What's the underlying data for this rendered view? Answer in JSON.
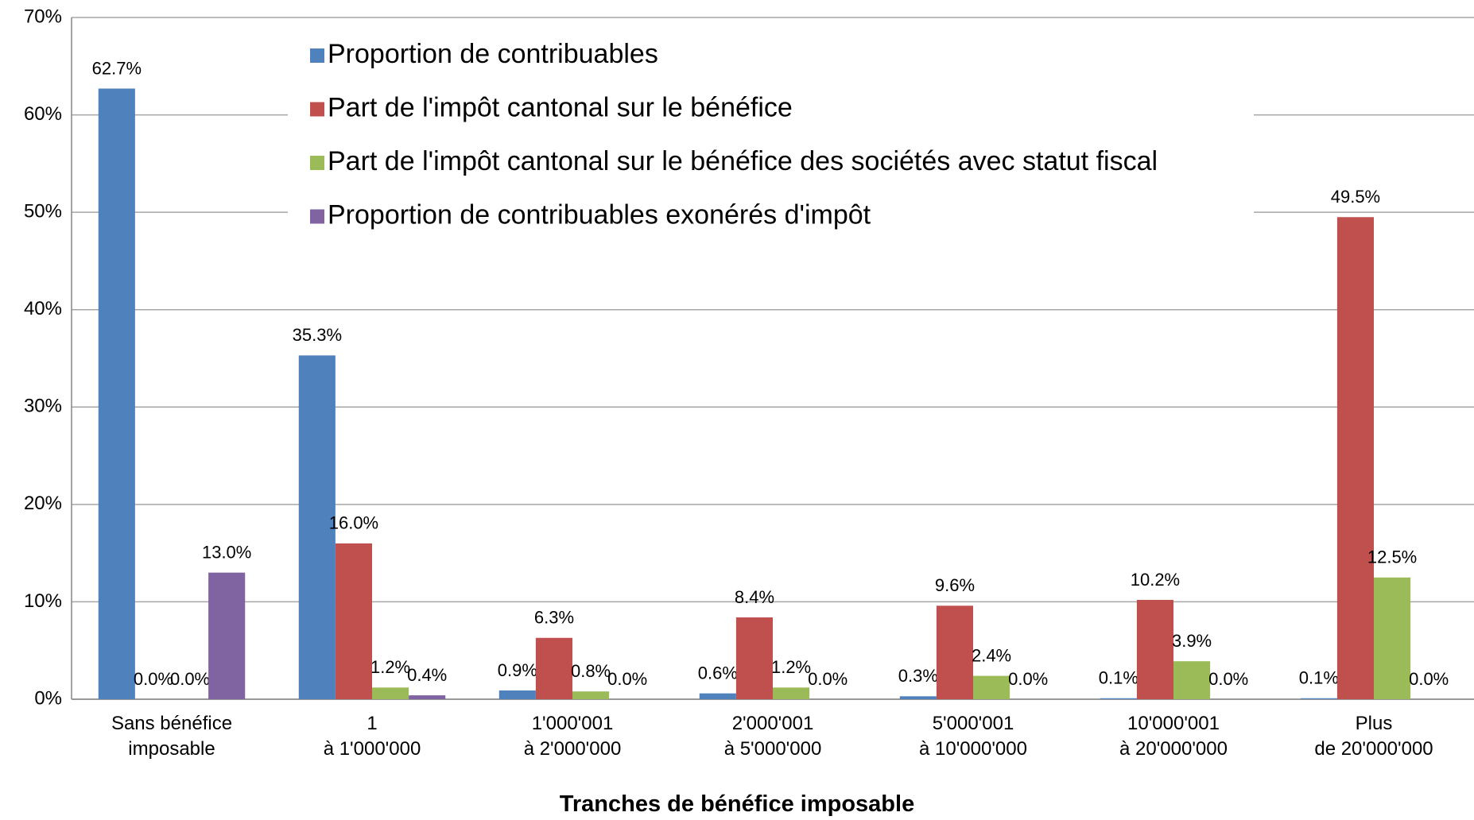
{
  "chart_data": {
    "type": "bar",
    "x_label": "Tranches de bénéfice imposable",
    "categories": [
      "Sans bénéfice\nimposable",
      "1\nà 1'000'000",
      "1'000'001\nà 2'000'000",
      "2'000'001\nà 5'000'000",
      "5'000'001\nà 10'000'000",
      "10'000'001\nà 20'000'000",
      "Plus\nde 20'000'000"
    ],
    "series": [
      {
        "name": "Proportion de contribuables",
        "color": "#4f81bd",
        "values": [
          62.7,
          35.3,
          0.9,
          0.6,
          0.3,
          0.1,
          0.1
        ],
        "value_labels": [
          "62.7%",
          "35.3%",
          "0.9%",
          "0.6%",
          "0.3%",
          "0.1%",
          "0.1%"
        ]
      },
      {
        "name": "Part de l'impôt cantonal sur le bénéfice",
        "color": "#c0504d",
        "values": [
          0.0,
          16.0,
          6.3,
          8.4,
          9.6,
          10.2,
          49.5
        ],
        "value_labels": [
          "0.0%",
          "16.0%",
          "6.3%",
          "8.4%",
          "9.6%",
          "10.2%",
          "49.5%"
        ]
      },
      {
        "name": "Part de l'impôt cantonal sur le bénéfice des sociétés avec statut fiscal",
        "color": "#9bbb59",
        "values": [
          0.0,
          1.2,
          0.8,
          1.2,
          2.4,
          3.9,
          12.5
        ],
        "value_labels": [
          "0.0%",
          "1.2%",
          "0.8%",
          "1.2%",
          "2.4%",
          "3.9%",
          "12.5%"
        ]
      },
      {
        "name": "Proportion de contribuables exonérés d'impôt",
        "color": "#8064a2",
        "values": [
          13.0,
          0.4,
          0.0,
          0.0,
          0.0,
          0.0,
          0.0
        ],
        "value_labels": [
          "13.0%",
          "0.4%",
          "0.0%",
          "0.0%",
          "0.0%",
          "0.0%",
          "0.0%"
        ]
      }
    ],
    "ylim": [
      0,
      70
    ],
    "yticks": [
      {
        "value": 0,
        "label": "0%"
      },
      {
        "value": 10,
        "label": "10%"
      },
      {
        "value": 20,
        "label": "20%"
      },
      {
        "value": 30,
        "label": "30%"
      },
      {
        "value": 40,
        "label": "40%"
      },
      {
        "value": 50,
        "label": "50%"
      },
      {
        "value": 60,
        "label": "60%"
      },
      {
        "value": 70,
        "label": "70%"
      }
    ],
    "grid": true,
    "legend": "top"
  }
}
